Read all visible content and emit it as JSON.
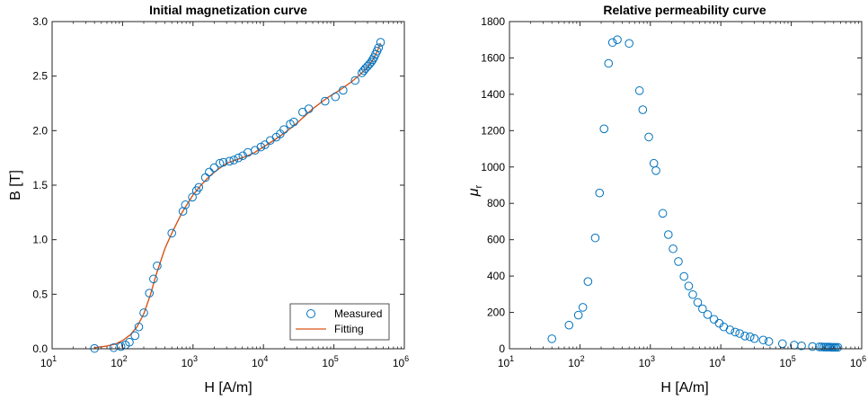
{
  "chart_data": [
    {
      "type": "scatter",
      "title": "Initial magnetization curve",
      "xlabel": "H [A/m]",
      "ylabel": "B [T]",
      "xscale": "log",
      "xlim": [
        10,
        1000000
      ],
      "ylim": [
        0,
        3.0
      ],
      "xticks": [
        10,
        100,
        1000,
        10000,
        100000,
        1000000
      ],
      "xtick_labels": [
        {
          "base": "10",
          "exp": "1"
        },
        {
          "base": "10",
          "exp": "2"
        },
        {
          "base": "10",
          "exp": "3"
        },
        {
          "base": "10",
          "exp": "4"
        },
        {
          "base": "10",
          "exp": "5"
        },
        {
          "base": "10",
          "exp": "6"
        }
      ],
      "yticks": [
        0,
        0.5,
        1.0,
        1.5,
        2.0,
        2.5,
        3.0
      ],
      "ytick_labels": [
        "0.0",
        "0.5",
        "1.0",
        "1.5",
        "2.0",
        "2.5",
        "3.0"
      ],
      "grid": false,
      "legend_position": "bottom-right",
      "series": [
        {
          "name": "Measured",
          "kind": "markers",
          "marker": "circle-open",
          "color": "#0072BD",
          "x": [
            40,
            75,
            95,
            110,
            125,
            150,
            170,
            200,
            240,
            275,
            310,
            500,
            720,
            780,
            980,
            1120,
            1210,
            1500,
            1700,
            2000,
            2400,
            2700,
            3300,
            3800,
            4400,
            5100,
            6000,
            7600,
            9200,
            10500,
            12500,
            15200,
            17300,
            19500,
            24000,
            27000,
            36000,
            44000,
            75000,
            105000,
            135000,
            200000,
            250000,
            265000,
            280000,
            300000,
            320000,
            340000,
            355000,
            370000,
            390000,
            410000,
            430000,
            460000
          ],
          "y": [
            0.003,
            0.01,
            0.02,
            0.035,
            0.06,
            0.12,
            0.2,
            0.33,
            0.51,
            0.64,
            0.76,
            1.06,
            1.26,
            1.32,
            1.39,
            1.45,
            1.48,
            1.57,
            1.62,
            1.66,
            1.7,
            1.71,
            1.72,
            1.73,
            1.75,
            1.77,
            1.8,
            1.82,
            1.85,
            1.87,
            1.91,
            1.94,
            1.97,
            2.01,
            2.06,
            2.08,
            2.17,
            2.2,
            2.27,
            2.31,
            2.37,
            2.46,
            2.53,
            2.55,
            2.57,
            2.59,
            2.61,
            2.63,
            2.65,
            2.67,
            2.7,
            2.73,
            2.76,
            2.81
          ]
        },
        {
          "name": "Fitting",
          "kind": "line",
          "color": "#D95319",
          "x": [
            40,
            60,
            80,
            100,
            130,
            160,
            200,
            250,
            300,
            400,
            500,
            700,
            1000,
            1300,
            1700,
            2200,
            3000,
            4000,
            5500,
            7500,
            10000,
            14000,
            20000,
            30000,
            50000,
            80000,
            120000,
            180000,
            250000,
            300000,
            350000,
            400000,
            460000
          ],
          "y": [
            0.01,
            0.025,
            0.045,
            0.075,
            0.13,
            0.2,
            0.32,
            0.5,
            0.68,
            0.92,
            1.06,
            1.25,
            1.41,
            1.5,
            1.58,
            1.64,
            1.7,
            1.73,
            1.76,
            1.8,
            1.85,
            1.91,
            1.98,
            2.07,
            2.2,
            2.3,
            2.37,
            2.45,
            2.53,
            2.58,
            2.64,
            2.71,
            2.8
          ]
        }
      ]
    },
    {
      "type": "scatter",
      "title": "Relative permeability curve",
      "xlabel": "H [A/m]",
      "ylabel": {
        "base": "μ",
        "sub": "r"
      },
      "xscale": "log",
      "xlim": [
        10,
        1000000
      ],
      "ylim": [
        0,
        1800
      ],
      "xticks": [
        10,
        100,
        1000,
        10000,
        100000,
        1000000
      ],
      "xtick_labels": [
        {
          "base": "10",
          "exp": "1"
        },
        {
          "base": "10",
          "exp": "2"
        },
        {
          "base": "10",
          "exp": "3"
        },
        {
          "base": "10",
          "exp": "4"
        },
        {
          "base": "10",
          "exp": "5"
        },
        {
          "base": "10",
          "exp": "6"
        }
      ],
      "yticks": [
        0,
        200,
        400,
        600,
        800,
        1000,
        1200,
        1400,
        1600,
        1800
      ],
      "ytick_labels": [
        "0",
        "200",
        "400",
        "600",
        "800",
        "1000",
        "1200",
        "1400",
        "1600",
        "1800"
      ],
      "grid": false,
      "series": [
        {
          "kind": "markers",
          "marker": "circle-open",
          "color": "#0072BD",
          "x": [
            40,
            70,
            95,
            110,
            130,
            165,
            190,
            220,
            255,
            290,
            340,
            500,
            700,
            780,
            950,
            1120,
            1200,
            1500,
            1800,
            2100,
            2500,
            3000,
            3500,
            4000,
            4700,
            5500,
            6500,
            8000,
            9500,
            11000,
            13500,
            16000,
            18500,
            22000,
            26000,
            30000,
            40000,
            48000,
            75000,
            110000,
            140000,
            200000,
            250000,
            270000,
            290000,
            310000,
            330000,
            350000,
            370000,
            390000,
            410000,
            430000,
            460000
          ],
          "y": [
            55,
            130,
            185,
            228,
            370,
            610,
            857,
            1210,
            1570,
            1685,
            1700,
            1680,
            1420,
            1315,
            1165,
            1020,
            980,
            745,
            628,
            550,
            480,
            398,
            345,
            298,
            255,
            220,
            188,
            162,
            140,
            120,
            104,
            92,
            84,
            70,
            66,
            56,
            48,
            40,
            28,
            20,
            16,
            12,
            10,
            10,
            9,
            9,
            9,
            9,
            8,
            8,
            8,
            8,
            8
          ]
        }
      ]
    }
  ]
}
